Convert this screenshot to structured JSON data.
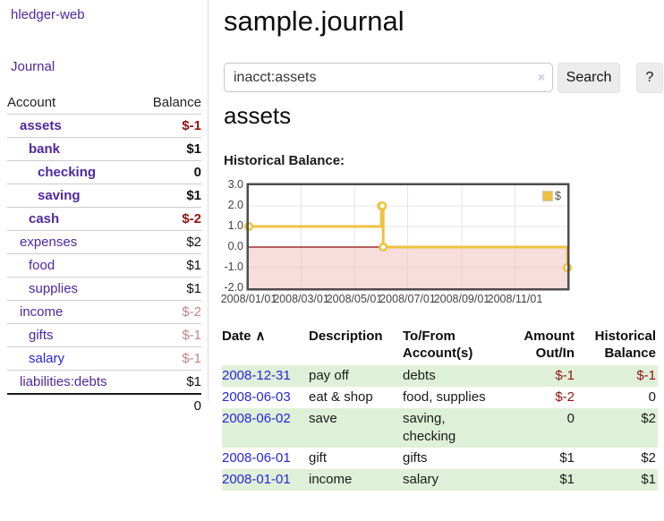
{
  "app": {
    "brand": "hledger-web",
    "nav_journal": "Journal"
  },
  "sidebar": {
    "header": {
      "account": "Account",
      "balance": "Balance"
    },
    "accounts": [
      {
        "name": "assets",
        "balance": "$-1",
        "indent": 0,
        "bold": true,
        "negative": true,
        "blue": false
      },
      {
        "name": "bank",
        "balance": "$1",
        "indent": 1,
        "bold": true,
        "negative": false,
        "blue": false
      },
      {
        "name": "checking",
        "balance": "0",
        "indent": 2,
        "bold": true,
        "negative": false,
        "blue": false
      },
      {
        "name": "saving",
        "balance": "$1",
        "indent": 2,
        "bold": true,
        "negative": false,
        "blue": false
      },
      {
        "name": "cash",
        "balance": "$-2",
        "indent": 1,
        "bold": true,
        "negative": true,
        "blue": false
      },
      {
        "name": "expenses",
        "balance": "$2",
        "indent": 0,
        "bold": false,
        "negative": false,
        "blue": false
      },
      {
        "name": "food",
        "balance": "$1",
        "indent": 1,
        "bold": false,
        "negative": false,
        "blue": false
      },
      {
        "name": "supplies",
        "balance": "$1",
        "indent": 1,
        "bold": false,
        "negative": false,
        "blue": false
      },
      {
        "name": "income",
        "balance": "$-2",
        "indent": 0,
        "bold": false,
        "negative": true,
        "blue": false
      },
      {
        "name": "gifts",
        "balance": "$-1",
        "indent": 1,
        "bold": false,
        "negative": true,
        "blue": false
      },
      {
        "name": "salary",
        "balance": "$-1",
        "indent": 1,
        "bold": false,
        "negative": true,
        "blue": true
      },
      {
        "name": "liabilities:debts",
        "balance": "$1",
        "indent": 0,
        "bold": false,
        "negative": false,
        "blue": false
      }
    ],
    "total": "0"
  },
  "header": {
    "title": "sample.journal"
  },
  "search": {
    "value": "inacct:assets",
    "clear_icon": "×",
    "button": "Search",
    "help": "?"
  },
  "account_page": {
    "title": "assets",
    "chart_label": "Historical Balance:"
  },
  "chart_data": {
    "type": "line",
    "title": "Historical Balance",
    "x_range": [
      "2008-01-01",
      "2008-12-31"
    ],
    "ylim": [
      -2,
      3
    ],
    "yticks": [
      3,
      2,
      1,
      0,
      -1,
      -2
    ],
    "ytick_labels": [
      "3.0",
      "2.0",
      "1.0",
      "0.0",
      "-1.0",
      "-2.0"
    ],
    "xticks": [
      {
        "date": "2008-01-01",
        "label": "2008/01/01"
      },
      {
        "date": "2008-03-01",
        "label": "2008/03/01"
      },
      {
        "date": "2008-05-01",
        "label": "2008/05/01"
      },
      {
        "date": "2008-07-01",
        "label": "2008/07/01"
      },
      {
        "date": "2008-09-01",
        "label": "2008/09/01"
      },
      {
        "date": "2008-11-01",
        "label": "2008/11/01"
      }
    ],
    "grid": true,
    "legend": {
      "label": "$",
      "position": "top-right"
    },
    "series": [
      {
        "name": "$",
        "color": "#edc240",
        "step": true,
        "points": [
          {
            "date": "2008-01-01",
            "value": 1
          },
          {
            "date": "2008-06-01",
            "value": 2
          },
          {
            "date": "2008-06-02",
            "value": 2
          },
          {
            "date": "2008-06-03",
            "value": 0
          },
          {
            "date": "2008-12-31",
            "value": -1
          }
        ]
      }
    ],
    "below_zero_fill": "#f2bcbc",
    "zero_line_color": "#8b0c0c"
  },
  "register": {
    "sort_icon": "∧",
    "columns": [
      {
        "label": "Date"
      },
      {
        "label": "Description"
      },
      {
        "label": "To/From\nAccount(s)"
      },
      {
        "label": "Amount\nOut/In"
      },
      {
        "label": "Historical\nBalance"
      }
    ],
    "rows": [
      {
        "date": "2008-12-31",
        "description": "pay off",
        "accounts": "debts",
        "amount": "$-1",
        "balance": "$-1"
      },
      {
        "date": "2008-06-03",
        "description": "eat & shop",
        "accounts": "food, supplies",
        "amount": "$-2",
        "balance": "0"
      },
      {
        "date": "2008-06-02",
        "description": "save",
        "accounts": "saving,\nchecking",
        "amount": "0",
        "balance": "$2"
      },
      {
        "date": "2008-06-01",
        "description": "gift",
        "accounts": "gifts",
        "amount": "$1",
        "balance": "$2"
      },
      {
        "date": "2008-01-01",
        "description": "income",
        "accounts": "salary",
        "amount": "$1",
        "balance": "$1"
      }
    ]
  }
}
